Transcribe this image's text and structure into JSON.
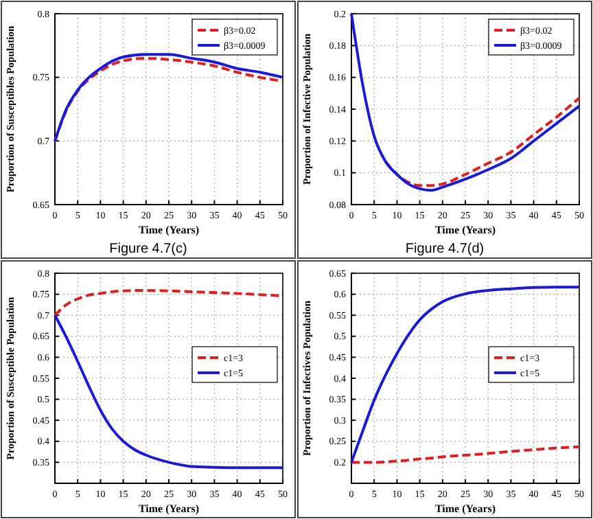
{
  "chart_data": [
    {
      "type": "line",
      "xlabel": "Time (Years)",
      "ylabel": "Proportion of Susceptibles Population",
      "x": [
        0,
        2.5,
        5,
        10,
        15,
        20,
        25,
        30,
        35,
        40,
        45,
        50
      ],
      "xlim": [
        0,
        50
      ],
      "xticks": [
        0,
        5,
        10,
        15,
        20,
        25,
        30,
        35,
        40,
        45,
        50
      ],
      "ylim": [
        0.65,
        0.8
      ],
      "yticks": [
        0.65,
        0.7,
        0.75,
        0.8
      ],
      "grid": true,
      "legend": "top right",
      "annotations": [
        "Figure 4.7(c)"
      ],
      "series": [
        {
          "name": "β3=0.02",
          "color": "#e02020",
          "line_style": "dashed",
          "values": [
            0.7,
            0.724,
            0.739,
            0.755,
            0.763,
            0.765,
            0.764,
            0.762,
            0.759,
            0.754,
            0.75,
            0.747
          ]
        },
        {
          "name": "β3=0.0009",
          "color": "#1a1adb",
          "line_style": "solid",
          "values": [
            0.7,
            0.725,
            0.74,
            0.757,
            0.766,
            0.768,
            0.768,
            0.765,
            0.762,
            0.757,
            0.754,
            0.75
          ]
        }
      ]
    },
    {
      "type": "line",
      "xlabel": "Time (Years)",
      "ylabel": "Proportion of Infective Population",
      "x": [
        0,
        2.5,
        5,
        7.5,
        10,
        12.5,
        15,
        17.5,
        20,
        25,
        30,
        35,
        40,
        45,
        50
      ],
      "xlim": [
        0,
        50
      ],
      "xticks": [
        0,
        5,
        10,
        15,
        20,
        25,
        30,
        35,
        40,
        45,
        50
      ],
      "ylim": [
        0.08,
        0.2
      ],
      "yticks": [
        0.08,
        0.1,
        0.12,
        0.14,
        0.16,
        0.18,
        0.2
      ],
      "grid": true,
      "legend": "top right",
      "annotations": [
        "Figure 4.7(d)"
      ],
      "series": [
        {
          "name": "β3=0.02",
          "color": "#e02020",
          "line_style": "dashed",
          "values": [
            null,
            null,
            null,
            0.107,
            0.099,
            0.094,
            0.092,
            0.092,
            0.093,
            0.099,
            0.106,
            0.113,
            0.124,
            0.135,
            0.147
          ]
        },
        {
          "name": "β3=0.0009",
          "color": "#1a1adb",
          "line_style": "solid",
          "values": [
            0.2,
            0.155,
            0.123,
            0.107,
            0.099,
            0.093,
            0.09,
            0.089,
            0.091,
            0.096,
            0.102,
            0.109,
            0.12,
            0.131,
            0.142
          ]
        }
      ]
    },
    {
      "type": "line",
      "xlabel": "Time (Years)",
      "ylabel": "Proportion of Susceptible Population",
      "x": [
        0,
        2.5,
        5,
        7.5,
        10,
        12.5,
        15,
        17.5,
        20,
        25,
        30,
        35,
        40,
        45,
        50
      ],
      "xlim": [
        0,
        50
      ],
      "xticks": [
        0,
        5,
        10,
        15,
        20,
        25,
        30,
        35,
        40,
        45,
        50
      ],
      "ylim": [
        0.3,
        0.8
      ],
      "yticks": [
        0.35,
        0.4,
        0.45,
        0.5,
        0.55,
        0.6,
        0.65,
        0.7,
        0.75,
        0.8
      ],
      "grid": true,
      "legend": "right",
      "series": [
        {
          "name": "c1=3",
          "color": "#e02020",
          "line_style": "dashed",
          "values": [
            0.7,
            0.725,
            0.739,
            0.748,
            0.752,
            0.756,
            0.758,
            0.759,
            0.759,
            0.758,
            0.756,
            0.754,
            0.752,
            0.749,
            0.746
          ]
        },
        {
          "name": "c1=5",
          "color": "#1a1adb",
          "line_style": "solid",
          "values": [
            0.7,
            0.648,
            0.59,
            0.53,
            0.474,
            0.43,
            0.4,
            0.38,
            0.367,
            0.35,
            0.34,
            0.338,
            0.337,
            0.337,
            0.337
          ]
        }
      ]
    },
    {
      "type": "line",
      "xlabel": "Time (Years)",
      "ylabel": "Proportion of Infectives Population",
      "x": [
        0,
        2.5,
        5,
        7.5,
        10,
        12.5,
        15,
        17.5,
        20,
        25,
        30,
        35,
        40,
        45,
        50
      ],
      "xlim": [
        0,
        50
      ],
      "xticks": [
        0,
        5,
        10,
        15,
        20,
        25,
        30,
        35,
        40,
        45,
        50
      ],
      "ylim": [
        0.15,
        0.65
      ],
      "yticks": [
        0.2,
        0.25,
        0.3,
        0.35,
        0.4,
        0.45,
        0.5,
        0.55,
        0.6,
        0.65
      ],
      "grid": true,
      "legend": "right",
      "series": [
        {
          "name": "c1=3",
          "color": "#e02020",
          "line_style": "dashed",
          "values": [
            0.2,
            0.2,
            0.2,
            0.201,
            0.203,
            0.205,
            0.208,
            0.21,
            0.213,
            0.217,
            0.221,
            0.226,
            0.23,
            0.234,
            0.237
          ]
        },
        {
          "name": "c1=5",
          "color": "#1a1adb",
          "line_style": "solid",
          "values": [
            0.2,
            0.275,
            0.348,
            0.408,
            0.459,
            0.503,
            0.539,
            0.564,
            0.582,
            0.601,
            0.609,
            0.613,
            0.616,
            0.617,
            0.617
          ]
        }
      ]
    }
  ]
}
